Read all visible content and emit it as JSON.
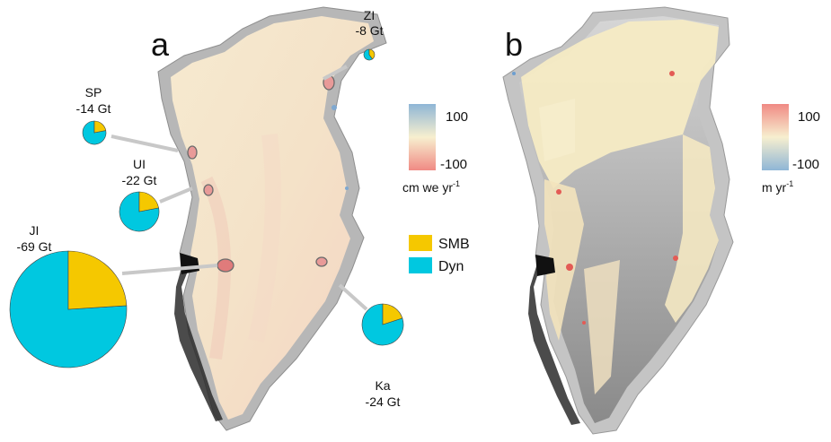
{
  "colors": {
    "smb": "#f5c800",
    "dyn": "#00c8e0",
    "outline": "#6b6b6b",
    "leader": "#c8c8c8"
  },
  "panel_a": {
    "label": "a",
    "colorbar": {
      "top": "100",
      "bottom": "-100",
      "unit": "cm we yr",
      "unit_exp": "-1",
      "ramp": "blue-to-red"
    },
    "legend": [
      {
        "label": "SMB",
        "color": "#f5c800"
      },
      {
        "label": "Dyn",
        "color": "#00c8e0"
      }
    ],
    "pies": [
      {
        "name": "ZI",
        "value": "-8 Gt",
        "smb_fraction": 0.4
      },
      {
        "name": "SP",
        "value": "-14 Gt",
        "smb_fraction": 0.22
      },
      {
        "name": "UI",
        "value": "-22 Gt",
        "smb_fraction": 0.22
      },
      {
        "name": "JI",
        "value": "-69 Gt",
        "smb_fraction": 0.24
      },
      {
        "name": "Ka",
        "value": "-24 Gt",
        "smb_fraction": 0.2
      }
    ]
  },
  "panel_b": {
    "label": "b",
    "colorbar": {
      "top": "100",
      "bottom": "-100",
      "unit": "m yr",
      "unit_exp": "-1",
      "ramp": "red-to-blue"
    }
  }
}
